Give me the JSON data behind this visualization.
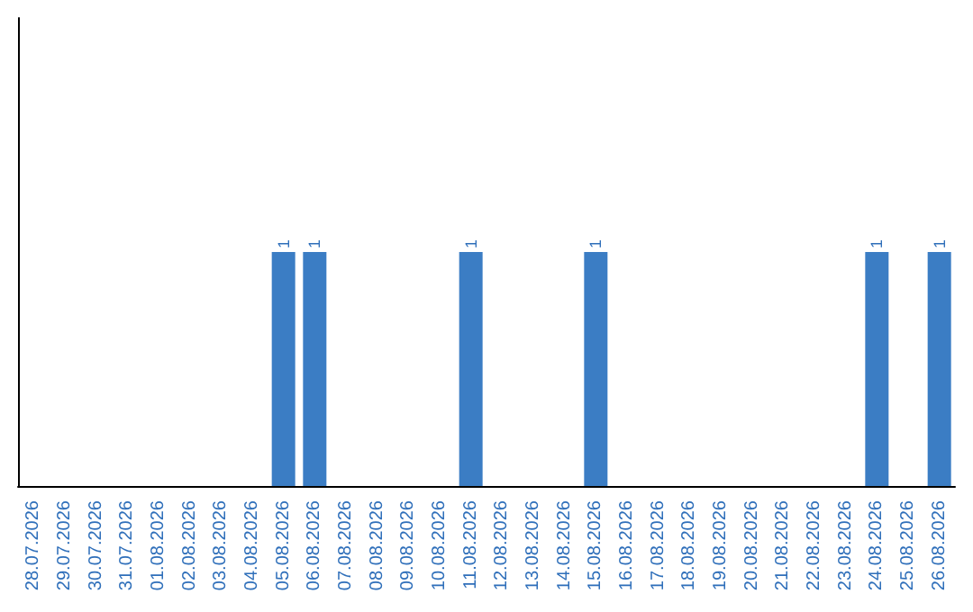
{
  "chart_data": {
    "type": "bar",
    "categories": [
      "28.07.2026",
      "29.07.2026",
      "30.07.2026",
      "31.07.2026",
      "01.08.2026",
      "02.08.2026",
      "03.08.2026",
      "04.08.2026",
      "05.08.2026",
      "06.08.2026",
      "07.08.2026",
      "08.08.2026",
      "09.08.2026",
      "10.08.2026",
      "11.08.2026",
      "12.08.2026",
      "13.08.2026",
      "14.08.2026",
      "15.08.2026",
      "16.08.2026",
      "17.08.2026",
      "18.08.2026",
      "19.08.2026",
      "20.08.2026",
      "21.08.2026",
      "22.08.2026",
      "23.08.2026",
      "24.08.2026",
      "25.08.2026",
      "26.08.2026"
    ],
    "values": [
      0,
      0,
      0,
      0,
      0,
      0,
      0,
      0,
      1,
      1,
      0,
      0,
      0,
      0,
      1,
      0,
      0,
      0,
      1,
      0,
      0,
      0,
      0,
      0,
      0,
      0,
      0,
      1,
      0,
      1
    ],
    "value_labels": [
      null,
      null,
      null,
      null,
      null,
      null,
      null,
      null,
      "1",
      "1",
      null,
      null,
      null,
      null,
      "1",
      null,
      null,
      null,
      "1",
      null,
      null,
      null,
      null,
      null,
      null,
      null,
      null,
      "1",
      null,
      "1"
    ],
    "color": "#3b7dc4",
    "ylim": [
      0,
      2
    ],
    "tick_labels": "x",
    "grid": false
  }
}
